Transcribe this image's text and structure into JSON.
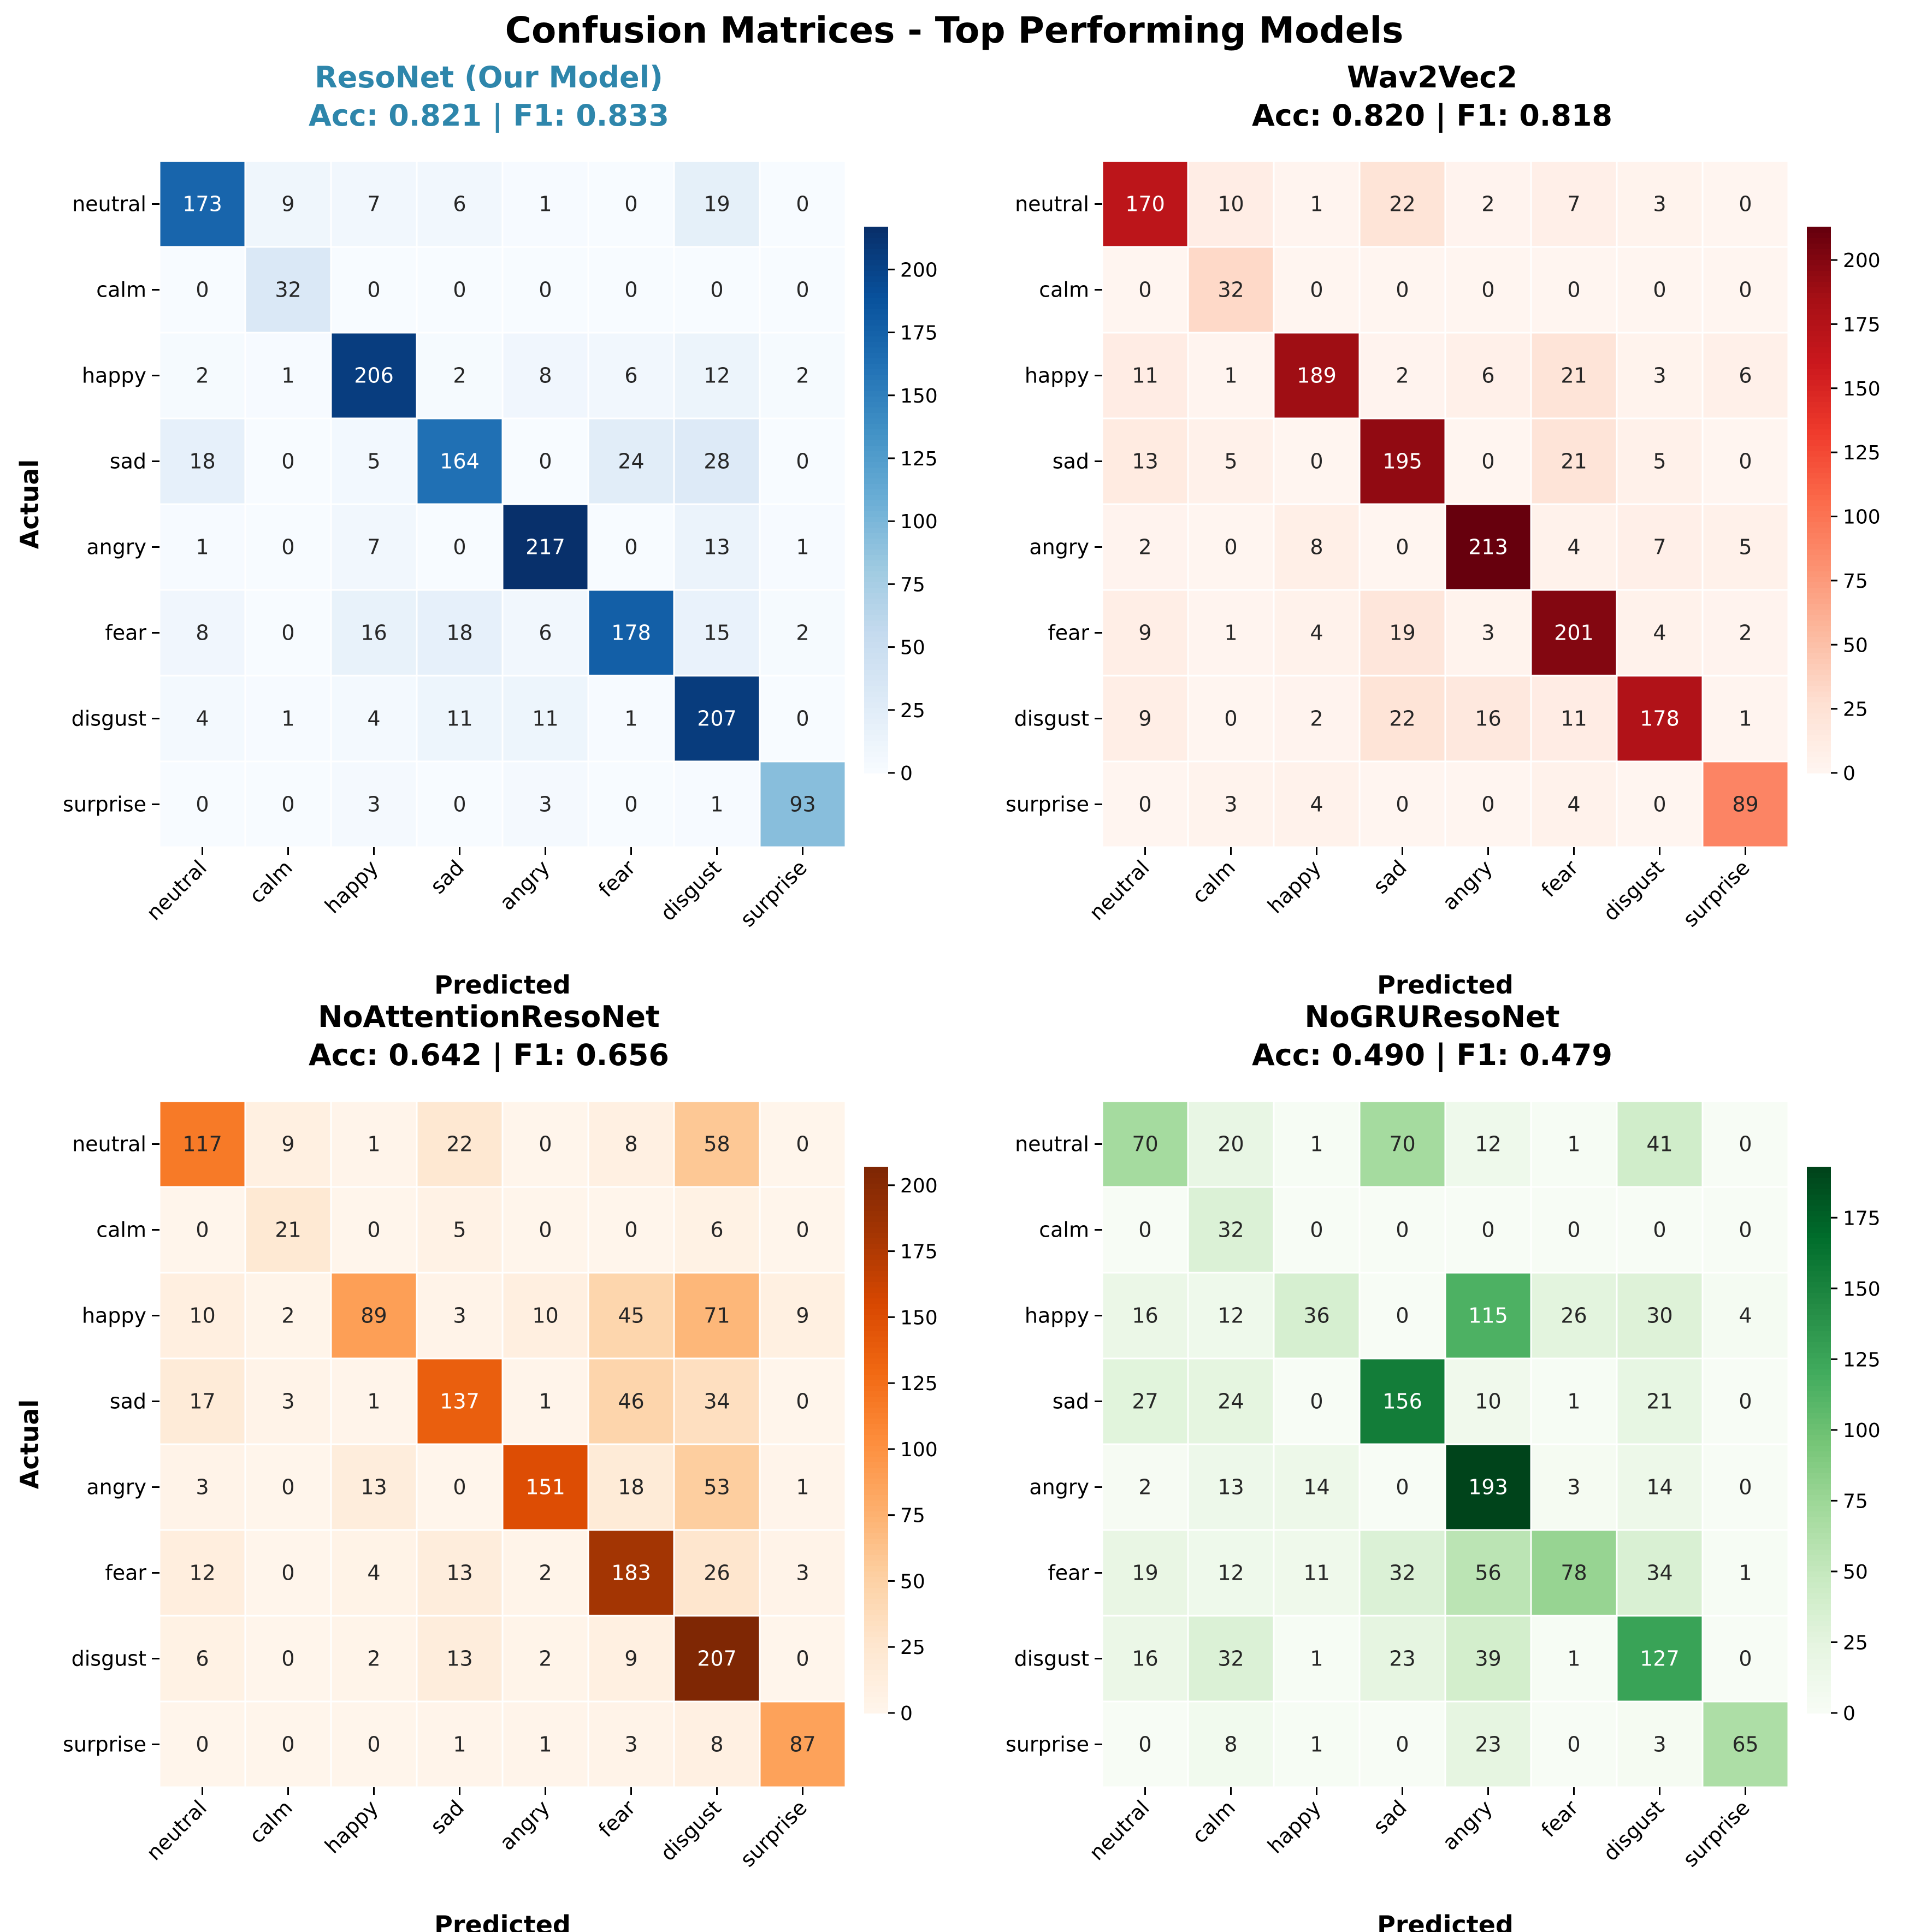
{
  "figure_title": "Confusion Matrices - Top Performing Models",
  "chart_data": [
    {
      "type": "heatmap",
      "title": "ResoNet (Our Model)",
      "subtitle": "Acc: 0.821 | F1: 0.833",
      "title_color": "#2e86ab",
      "colormap": "Blues",
      "xlabel": "Predicted",
      "ylabel": "Actual",
      "x_categories": [
        "neutral",
        "calm",
        "happy",
        "sad",
        "angry",
        "fear",
        "disgust",
        "surprise"
      ],
      "y_categories": [
        "neutral",
        "calm",
        "happy",
        "sad",
        "angry",
        "fear",
        "disgust",
        "surprise"
      ],
      "values": [
        [
          173,
          9,
          7,
          6,
          1,
          0,
          19,
          0
        ],
        [
          0,
          32,
          0,
          0,
          0,
          0,
          0,
          0
        ],
        [
          2,
          1,
          206,
          2,
          8,
          6,
          12,
          2
        ],
        [
          18,
          0,
          5,
          164,
          0,
          24,
          28,
          0
        ],
        [
          1,
          0,
          7,
          0,
          217,
          0,
          13,
          1
        ],
        [
          8,
          0,
          16,
          18,
          6,
          178,
          15,
          2
        ],
        [
          4,
          1,
          4,
          11,
          11,
          1,
          207,
          0
        ],
        [
          0,
          0,
          3,
          0,
          3,
          0,
          1,
          93
        ]
      ],
      "colorbar_range": [
        0,
        217
      ],
      "colorbar_ticks": [
        0,
        25,
        50,
        75,
        100,
        125,
        150,
        175,
        200
      ]
    },
    {
      "type": "heatmap",
      "title": "Wav2Vec2",
      "subtitle": "Acc: 0.820 | F1: 0.818",
      "title_color": "#000000",
      "colormap": "Reds",
      "xlabel": "Predicted",
      "ylabel": "",
      "x_categories": [
        "neutral",
        "calm",
        "happy",
        "sad",
        "angry",
        "fear",
        "disgust",
        "surprise"
      ],
      "y_categories": [
        "neutral",
        "calm",
        "happy",
        "sad",
        "angry",
        "fear",
        "disgust",
        "surprise"
      ],
      "values": [
        [
          170,
          10,
          1,
          22,
          2,
          7,
          3,
          0
        ],
        [
          0,
          32,
          0,
          0,
          0,
          0,
          0,
          0
        ],
        [
          11,
          1,
          189,
          2,
          6,
          21,
          3,
          6
        ],
        [
          13,
          5,
          0,
          195,
          0,
          21,
          5,
          0
        ],
        [
          2,
          0,
          8,
          0,
          213,
          4,
          7,
          5
        ],
        [
          9,
          1,
          4,
          19,
          3,
          201,
          4,
          2
        ],
        [
          9,
          0,
          2,
          22,
          16,
          11,
          178,
          1
        ],
        [
          0,
          3,
          4,
          0,
          0,
          4,
          0,
          89
        ]
      ],
      "colorbar_range": [
        0,
        213
      ],
      "colorbar_ticks": [
        0,
        25,
        50,
        75,
        100,
        125,
        150,
        175,
        200
      ]
    },
    {
      "type": "heatmap",
      "title": "NoAttentionResoNet",
      "subtitle": "Acc: 0.642 | F1: 0.656",
      "title_color": "#000000",
      "colormap": "Oranges",
      "xlabel": "Predicted",
      "ylabel": "Actual",
      "x_categories": [
        "neutral",
        "calm",
        "happy",
        "sad",
        "angry",
        "fear",
        "disgust",
        "surprise"
      ],
      "y_categories": [
        "neutral",
        "calm",
        "happy",
        "sad",
        "angry",
        "fear",
        "disgust",
        "surprise"
      ],
      "values": [
        [
          117,
          9,
          1,
          22,
          0,
          8,
          58,
          0
        ],
        [
          0,
          21,
          0,
          5,
          0,
          0,
          6,
          0
        ],
        [
          10,
          2,
          89,
          3,
          10,
          45,
          71,
          9
        ],
        [
          17,
          3,
          1,
          137,
          1,
          46,
          34,
          0
        ],
        [
          3,
          0,
          13,
          0,
          151,
          18,
          53,
          1
        ],
        [
          12,
          0,
          4,
          13,
          2,
          183,
          26,
          3
        ],
        [
          6,
          0,
          2,
          13,
          2,
          9,
          207,
          0
        ],
        [
          0,
          0,
          0,
          1,
          1,
          3,
          8,
          87
        ]
      ],
      "colorbar_range": [
        0,
        207
      ],
      "colorbar_ticks": [
        0,
        25,
        50,
        75,
        100,
        125,
        150,
        175,
        200
      ]
    },
    {
      "type": "heatmap",
      "title": "NoGRUResoNet",
      "subtitle": "Acc: 0.490 | F1: 0.479",
      "title_color": "#000000",
      "colormap": "Greens",
      "xlabel": "Predicted",
      "ylabel": "",
      "x_categories": [
        "neutral",
        "calm",
        "happy",
        "sad",
        "angry",
        "fear",
        "disgust",
        "surprise"
      ],
      "y_categories": [
        "neutral",
        "calm",
        "happy",
        "sad",
        "angry",
        "fear",
        "disgust",
        "surprise"
      ],
      "values": [
        [
          70,
          20,
          1,
          70,
          12,
          1,
          41,
          0
        ],
        [
          0,
          32,
          0,
          0,
          0,
          0,
          0,
          0
        ],
        [
          16,
          12,
          36,
          0,
          115,
          26,
          30,
          4
        ],
        [
          27,
          24,
          0,
          156,
          10,
          1,
          21,
          0
        ],
        [
          2,
          13,
          14,
          0,
          193,
          3,
          14,
          0
        ],
        [
          19,
          12,
          11,
          32,
          56,
          78,
          34,
          1
        ],
        [
          16,
          32,
          1,
          23,
          39,
          1,
          127,
          0
        ],
        [
          0,
          8,
          1,
          0,
          23,
          0,
          3,
          65
        ]
      ],
      "colorbar_range": [
        0,
        193
      ],
      "colorbar_ticks": [
        0,
        25,
        50,
        75,
        100,
        125,
        150,
        175
      ]
    }
  ]
}
